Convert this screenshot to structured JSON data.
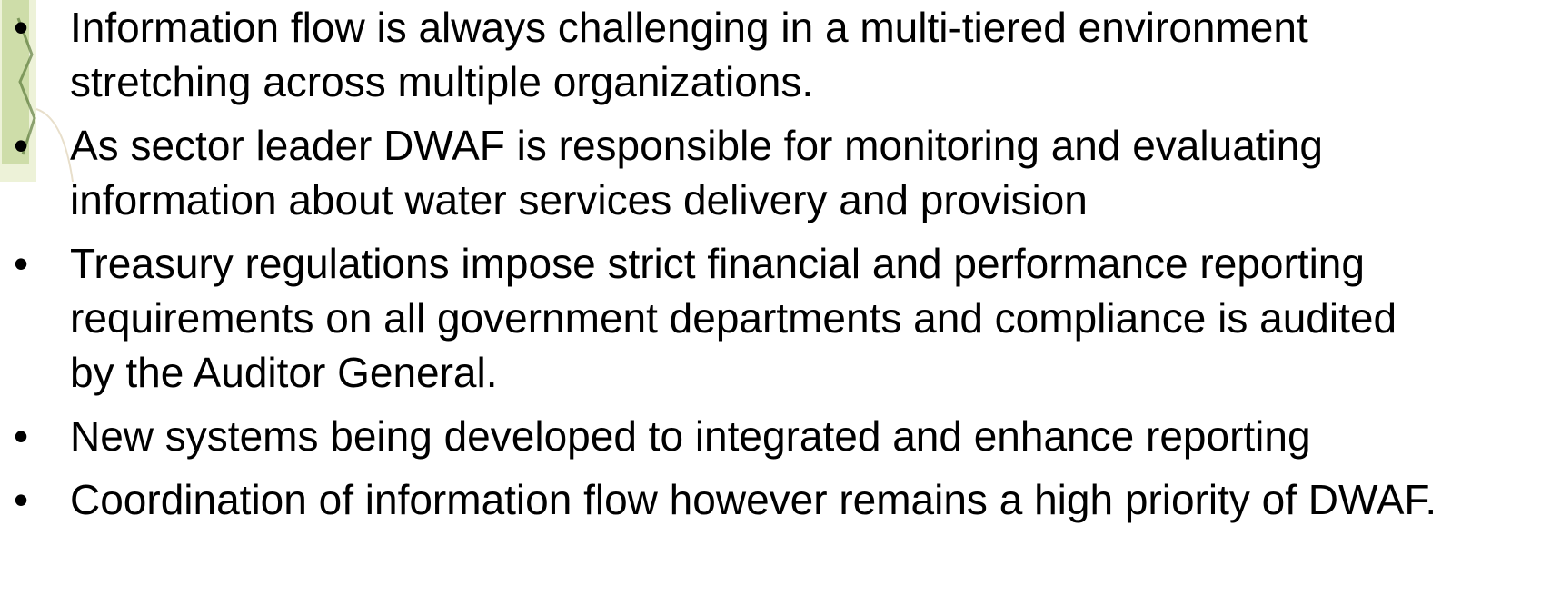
{
  "bullets": [
    "Information flow is always challenging in a multi-tiered environment stretching across multiple organizations.",
    "As sector leader DWAF is responsible for monitoring and evaluating information about water services delivery and provision",
    "Treasury regulations impose strict financial and performance reporting requirements on all government departments and compliance is audited by the Auditor General.",
    "New systems being developed to integrated and enhance reporting",
    "Coordination of information flow however remains a high priority of DWAF."
  ]
}
